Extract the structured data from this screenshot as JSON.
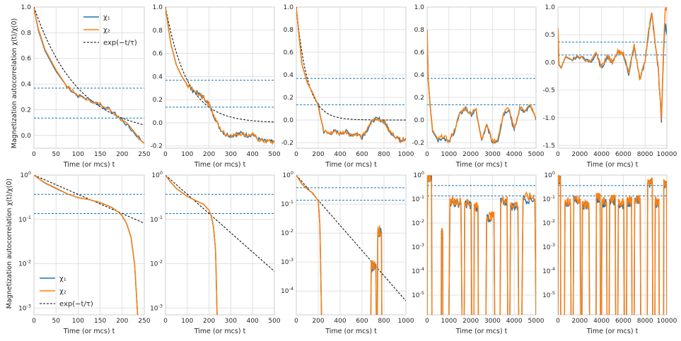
{
  "figure": {
    "ylabel": "Magnetization autocorrelation χ(t)/χ(0)",
    "xlabel": "Time (or mcs) t",
    "legend": {
      "chi1": "χ₁",
      "chi2": "χ₂",
      "exp": "exp(−t/τ)"
    },
    "colors": {
      "chi1": "#1f77b4",
      "chi2": "#ff7f0e",
      "exp": "#000000",
      "hline": "#1f77b4",
      "grid": "#d9d9d9"
    },
    "hlines": [
      0.3679,
      0.1353
    ]
  },
  "chart_data": [
    {
      "type": "line",
      "scale": "linear",
      "xlim": [
        0,
        250
      ],
      "ylim": [
        -0.1,
        1.0
      ],
      "xticks": [
        0,
        50,
        100,
        150,
        200,
        250
      ],
      "yticks": [
        0.0,
        0.2,
        0.4,
        0.6,
        0.8,
        1.0
      ],
      "ytick_labels": [
        "0.0",
        "0.2",
        "0.4",
        "0.6",
        "0.8",
        "1.0"
      ],
      "legend": "top-right",
      "tau": 100,
      "exp_xmax": 250,
      "series": [
        {
          "name": "χ₁",
          "x": [
            0,
            10,
            25,
            50,
            75,
            100,
            125,
            150,
            175,
            200,
            225,
            250
          ],
          "y": [
            0.99,
            0.82,
            0.66,
            0.5,
            0.38,
            0.31,
            0.28,
            0.24,
            0.19,
            0.12,
            0.03,
            -0.06
          ]
        },
        {
          "name": "χ₂",
          "x": [
            0,
            10,
            25,
            50,
            75,
            100,
            125,
            150,
            175,
            200,
            225,
            250
          ],
          "y": [
            0.99,
            0.83,
            0.67,
            0.51,
            0.38,
            0.31,
            0.28,
            0.24,
            0.19,
            0.12,
            0.03,
            -0.06
          ]
        }
      ]
    },
    {
      "type": "line",
      "scale": "linear",
      "xlim": [
        0,
        500
      ],
      "ylim": [
        -0.22,
        1.0
      ],
      "xticks": [
        0,
        100,
        200,
        300,
        400,
        500
      ],
      "yticks": [
        -0.2,
        0.0,
        0.2,
        0.4,
        0.6,
        0.8,
        1.0
      ],
      "ytick_labels": [
        "-0.2",
        "0.0",
        "0.2",
        "0.4",
        "0.6",
        "0.8",
        "1.0"
      ],
      "tau": 100,
      "exp_xmax": 500,
      "series": [
        {
          "name": "χ₁",
          "x": [
            0,
            25,
            50,
            75,
            100,
            125,
            150,
            175,
            200,
            225,
            250,
            275,
            300,
            325,
            350,
            375,
            400,
            425,
            450,
            475,
            500
          ],
          "y": [
            0.99,
            0.68,
            0.5,
            0.4,
            0.33,
            0.28,
            0.25,
            0.22,
            0.16,
            0.05,
            -0.05,
            -0.1,
            -0.11,
            -0.1,
            -0.09,
            -0.11,
            -0.1,
            -0.14,
            -0.16,
            -0.16,
            -0.17
          ]
        },
        {
          "name": "χ₂",
          "x": [
            0,
            25,
            50,
            75,
            100,
            125,
            150,
            175,
            200,
            225,
            250,
            275,
            300,
            325,
            350,
            375,
            400,
            425,
            450,
            475,
            500
          ],
          "y": [
            0.99,
            0.68,
            0.5,
            0.4,
            0.33,
            0.28,
            0.25,
            0.22,
            0.16,
            0.05,
            -0.05,
            -0.1,
            -0.11,
            -0.1,
            -0.09,
            -0.11,
            -0.1,
            -0.14,
            -0.16,
            -0.16,
            -0.17
          ]
        }
      ]
    },
    {
      "type": "line",
      "scale": "linear",
      "xlim": [
        0,
        1000
      ],
      "ylim": [
        -0.25,
        1.0
      ],
      "xticks": [
        0,
        200,
        400,
        600,
        800,
        1000
      ],
      "yticks": [
        -0.2,
        0.0,
        0.2,
        0.4,
        0.6,
        0.8,
        1.0
      ],
      "ytick_labels": [
        "-0.2",
        "0.0",
        "0.2",
        "0.4",
        "0.6",
        "0.8",
        "1.0"
      ],
      "tau": 100,
      "exp_xmax": 1000,
      "series": [
        {
          "name": "χ₁",
          "x": [
            0,
            50,
            100,
            150,
            200,
            250,
            300,
            350,
            400,
            450,
            500,
            550,
            600,
            650,
            700,
            750,
            800,
            850,
            900,
            950,
            1000
          ],
          "y": [
            0.99,
            0.5,
            0.33,
            0.24,
            0.13,
            -0.1,
            -0.12,
            -0.1,
            -0.12,
            -0.1,
            -0.13,
            -0.12,
            -0.15,
            -0.08,
            0.0,
            0.01,
            -0.01,
            -0.1,
            -0.14,
            -0.18,
            -0.16
          ]
        },
        {
          "name": "χ₂",
          "x": [
            0,
            50,
            100,
            150,
            200,
            250,
            300,
            350,
            400,
            450,
            500,
            550,
            600,
            650,
            700,
            750,
            800,
            850,
            900,
            950,
            1000
          ],
          "y": [
            0.99,
            0.5,
            0.33,
            0.24,
            0.13,
            -0.1,
            -0.12,
            -0.1,
            -0.12,
            -0.1,
            -0.13,
            -0.12,
            -0.15,
            -0.08,
            0.0,
            0.01,
            -0.01,
            -0.1,
            -0.14,
            -0.18,
            -0.16
          ]
        }
      ]
    },
    {
      "type": "line",
      "scale": "linear",
      "xlim": [
        0,
        5000
      ],
      "ylim": [
        -0.25,
        1.0
      ],
      "xticks": [
        0,
        1000,
        2000,
        3000,
        4000,
        5000
      ],
      "yticks": [
        -0.2,
        0.0,
        0.2,
        0.4,
        0.6,
        0.8,
        1.0
      ],
      "ytick_labels": [
        "-0.2",
        "0.0",
        "0.2",
        "0.4",
        "0.6",
        "0.8",
        "1.0"
      ],
      "series": [
        {
          "name": "χ₁",
          "x": [
            0,
            50,
            150,
            250,
            500,
            750,
            1000,
            1250,
            1500,
            1750,
            2000,
            2250,
            2500,
            2750,
            3000,
            3250,
            3500,
            3750,
            4000,
            4250,
            4500,
            4750,
            5000
          ],
          "y": [
            0.8,
            0.35,
            0.1,
            -0.1,
            -0.18,
            -0.15,
            -0.2,
            -0.1,
            0.05,
            0.1,
            0.05,
            0.08,
            -0.18,
            -0.05,
            -0.2,
            -0.18,
            0.05,
            0.1,
            -0.1,
            0.1,
            0.08,
            0.12,
            0.0
          ]
        },
        {
          "name": "χ₂",
          "x": [
            0,
            50,
            150,
            250,
            500,
            750,
            1000,
            1250,
            1500,
            1750,
            2000,
            2250,
            2500,
            2750,
            3000,
            3250,
            3500,
            3750,
            4000,
            4250,
            4500,
            4750,
            5000
          ],
          "y": [
            0.8,
            0.36,
            0.11,
            -0.09,
            -0.17,
            -0.14,
            -0.19,
            -0.09,
            0.06,
            0.11,
            0.06,
            0.09,
            -0.17,
            -0.04,
            -0.19,
            -0.17,
            0.06,
            0.11,
            -0.09,
            0.11,
            0.09,
            0.13,
            0.01
          ]
        }
      ]
    },
    {
      "type": "line",
      "scale": "linear",
      "xlim": [
        0,
        10000
      ],
      "ylim": [
        -1.55,
        1.0
      ],
      "xticks": [
        0,
        2000,
        4000,
        6000,
        8000,
        10000
      ],
      "yticks": [
        -1.5,
        -1.0,
        -0.5,
        0.0,
        0.5,
        1.0
      ],
      "ytick_labels": [
        "-1.5",
        "-1.0",
        "-0.5",
        "0.0",
        "0.5",
        "1.0"
      ],
      "series": [
        {
          "name": "χ₁",
          "x": [
            0,
            100,
            300,
            700,
            1200,
            2000,
            3000,
            3500,
            4000,
            4500,
            5000,
            5500,
            6000,
            6500,
            7000,
            7500,
            8000,
            8300,
            8600,
            8900,
            9200,
            9500,
            9700,
            9850,
            10000
          ],
          "y": [
            0.6,
            -0.05,
            -0.1,
            0.1,
            0.05,
            0.1,
            0.0,
            0.15,
            -0.1,
            0.1,
            0.0,
            0.2,
            0.15,
            -0.2,
            0.3,
            -0.3,
            0.0,
            0.5,
            0.9,
            0.4,
            -0.1,
            -1.05,
            0.2,
            0.7,
            0.5
          ]
        },
        {
          "name": "χ₂",
          "x": [
            0,
            100,
            300,
            700,
            1200,
            2000,
            3000,
            3500,
            4000,
            4500,
            5000,
            5500,
            6000,
            6500,
            7000,
            7500,
            8000,
            8300,
            8600,
            8900,
            9200,
            9500,
            9700,
            9850,
            10000
          ],
          "y": [
            0.62,
            -0.04,
            -0.09,
            0.11,
            0.06,
            0.11,
            0.01,
            0.16,
            -0.09,
            0.11,
            0.01,
            0.21,
            0.16,
            -0.19,
            0.31,
            -0.29,
            0.01,
            0.52,
            0.92,
            0.42,
            -0.09,
            -1.0,
            0.3,
            0.95,
            0.98
          ]
        }
      ]
    },
    {
      "type": "line",
      "scale": "log",
      "xlim": [
        0,
        250
      ],
      "ylim": [
        0.0007,
        1.0
      ],
      "xticks": [
        0,
        50,
        100,
        150,
        200,
        250
      ],
      "yticks": [
        0.001,
        0.01,
        0.1,
        1
      ],
      "ytick_exps": [
        "-3",
        "-2",
        "-1",
        "0"
      ],
      "legend": "bottom-left",
      "tau": 100,
      "exp_xmax": 250,
      "series": [
        {
          "name": "χ₁",
          "x": [
            0,
            25,
            50,
            75,
            100,
            125,
            150,
            175,
            190,
            200,
            210,
            220,
            228,
            235
          ],
          "y": [
            1.0,
            0.66,
            0.5,
            0.38,
            0.31,
            0.28,
            0.24,
            0.19,
            0.15,
            0.12,
            0.08,
            0.04,
            0.01,
            0.0007
          ]
        },
        {
          "name": "χ₂",
          "x": [
            0,
            25,
            50,
            75,
            100,
            125,
            150,
            175,
            190,
            200,
            210,
            220,
            228,
            235
          ],
          "y": [
            1.0,
            0.67,
            0.51,
            0.38,
            0.31,
            0.28,
            0.24,
            0.19,
            0.15,
            0.12,
            0.08,
            0.04,
            0.01,
            0.0007
          ]
        }
      ]
    },
    {
      "type": "line",
      "scale": "log",
      "xlim": [
        0,
        500
      ],
      "ylim": [
        0.0007,
        1.0
      ],
      "xticks": [
        0,
        100,
        200,
        300,
        400,
        500
      ],
      "yticks": [
        0.001,
        0.01,
        0.1,
        1
      ],
      "ytick_exps": [
        "-3",
        "-2",
        "-1",
        "0"
      ],
      "tau": 100,
      "exp_xmax": 500,
      "series": [
        {
          "name": "χ₁",
          "x": [
            0,
            25,
            50,
            100,
            150,
            175,
            200,
            210,
            220,
            230,
            237
          ],
          "y": [
            1.0,
            0.68,
            0.5,
            0.33,
            0.25,
            0.22,
            0.16,
            0.12,
            0.07,
            0.02,
            0.0007
          ]
        },
        {
          "name": "χ₂",
          "x": [
            0,
            25,
            50,
            100,
            150,
            175,
            200,
            210,
            220,
            230,
            237
          ],
          "y": [
            1.0,
            0.68,
            0.5,
            0.33,
            0.25,
            0.22,
            0.16,
            0.12,
            0.07,
            0.02,
            0.0007
          ]
        }
      ]
    },
    {
      "type": "line",
      "scale": "log",
      "xlim": [
        0,
        1000
      ],
      "ylim": [
        1.5e-05,
        1.0
      ],
      "xticks": [
        0,
        200,
        400,
        600,
        800,
        1000
      ],
      "yticks": [
        0.0001,
        0.001,
        0.01,
        0.1,
        1
      ],
      "ytick_exps": [
        "-4",
        "-3",
        "-2",
        "-1",
        "0"
      ],
      "tau": 100,
      "exp_xmax": 1000,
      "series": [
        {
          "name": "χ₁",
          "x": [
            0,
            50,
            100,
            150,
            200,
            215,
            230
          ],
          "y": [
            1.0,
            0.5,
            0.33,
            0.24,
            0.13,
            0.02,
            1.5e-05
          ]
        },
        {
          "name": "χ₂",
          "x": [
            0,
            50,
            100,
            150,
            200,
            215,
            230
          ],
          "y": [
            1.0,
            0.5,
            0.33,
            0.24,
            0.13,
            0.02,
            1.5e-05
          ]
        }
      ],
      "bursts": [
        [
          680,
          730,
          0.0008
        ],
        [
          740,
          780,
          0.012
        ]
      ]
    },
    {
      "type": "line",
      "scale": "log",
      "xlim": [
        0,
        5000
      ],
      "ylim": [
        1.5e-06,
        1.0
      ],
      "xticks": [
        0,
        1000,
        2000,
        3000,
        4000,
        5000
      ],
      "yticks": [
        1e-05,
        0.0001,
        0.001,
        0.01,
        0.1,
        1
      ],
      "ytick_exps": [
        "-5",
        "-4",
        "-3",
        "-2",
        "-1",
        "0"
      ],
      "levels": [
        0.8,
        0.05,
        0.06,
        0.1,
        0.05,
        0.08,
        0.12,
        0.1,
        0.09
      ],
      "bursts": [
        [
          0,
          220,
          0.8
        ],
        [
          650,
          720,
          0.004
        ],
        [
          1000,
          1600,
          0.08
        ],
        [
          1700,
          2050,
          0.07
        ],
        [
          2150,
          2350,
          0.05
        ],
        [
          2700,
          3100,
          0.02
        ],
        [
          3350,
          3700,
          0.09
        ],
        [
          3800,
          4200,
          0.06
        ],
        [
          4350,
          5000,
          0.12
        ]
      ]
    },
    {
      "type": "line",
      "scale": "log",
      "xlim": [
        0,
        10000
      ],
      "ylim": [
        1.5e-06,
        1.0
      ],
      "xticks": [
        0,
        2000,
        4000,
        6000,
        8000,
        10000
      ],
      "yticks": [
        1e-05,
        0.0001,
        0.001,
        0.01,
        0.1,
        1
      ],
      "ytick_exps": [
        "-5",
        "-4",
        "-3",
        "-2",
        "-1",
        "0"
      ],
      "bursts": [
        [
          0,
          250,
          0.7
        ],
        [
          600,
          1200,
          0.08
        ],
        [
          1400,
          2100,
          0.1
        ],
        [
          2200,
          2900,
          0.06
        ],
        [
          3500,
          3900,
          0.12
        ],
        [
          4000,
          4500,
          0.08
        ],
        [
          4700,
          5300,
          0.1
        ],
        [
          5500,
          6100,
          0.07
        ],
        [
          6300,
          6800,
          0.09
        ],
        [
          7000,
          7600,
          0.1
        ],
        [
          8200,
          8700,
          0.5
        ],
        [
          8900,
          9300,
          0.08
        ],
        [
          9700,
          10000,
          0.5
        ]
      ]
    }
  ]
}
